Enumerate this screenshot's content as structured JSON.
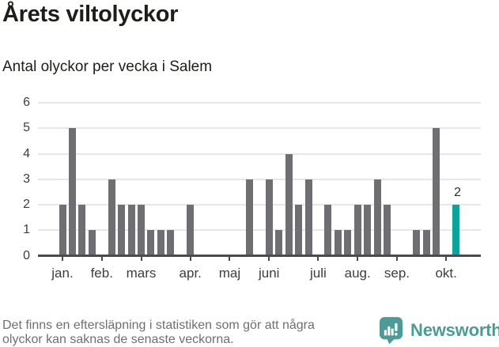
{
  "header": {
    "title": "Årets viltolyckor",
    "subtitle": "Antal olyckor per vecka i Salem"
  },
  "chart_data": {
    "type": "bar",
    "title": "Årets viltolyckor",
    "subtitle": "Antal olyckor per vecka i Salem",
    "x_unit": "vecka (week of year)",
    "categories_weeks": [
      1,
      2,
      3,
      4,
      5,
      6,
      7,
      8,
      9,
      10,
      11,
      12,
      13,
      14,
      15,
      16,
      17,
      18,
      19,
      20,
      21,
      22,
      23,
      24,
      25,
      26,
      27,
      28,
      29,
      30,
      31,
      32,
      33,
      34,
      35,
      36,
      37,
      38,
      39,
      40,
      41
    ],
    "values": [
      2,
      5,
      2,
      1,
      0,
      3,
      2,
      2,
      2,
      1,
      1,
      1,
      0,
      2,
      0,
      0,
      0,
      0,
      0,
      3,
      0,
      3,
      1,
      4,
      2,
      3,
      0,
      2,
      1,
      1,
      2,
      2,
      3,
      2,
      0,
      0,
      1,
      1,
      5,
      0,
      2
    ],
    "ylim": [
      0,
      6
    ],
    "y_ticks": [
      0,
      1,
      2,
      3,
      4,
      5,
      6
    ],
    "x_tick_labels": [
      "jan.",
      "feb.",
      "mars",
      "apr.",
      "maj",
      "juni",
      "juli",
      "aug.",
      "sep.",
      "okt."
    ],
    "x_tick_weeks": [
      1,
      5,
      9,
      14,
      18,
      22,
      27,
      31,
      35,
      40
    ],
    "grid": true,
    "legend": "none",
    "bar_color": "#6f6e72",
    "highlight_last": true,
    "highlight_color": "#09a49b",
    "highlight_label": "2"
  },
  "footer": {
    "note_line1": "Det finns en eftersläpning i statistiken som gör att några",
    "note_line2": "olyckor kan saknas de senaste veckorna.",
    "brand": "Newsworthy",
    "brand_color": "#4d9b97"
  }
}
